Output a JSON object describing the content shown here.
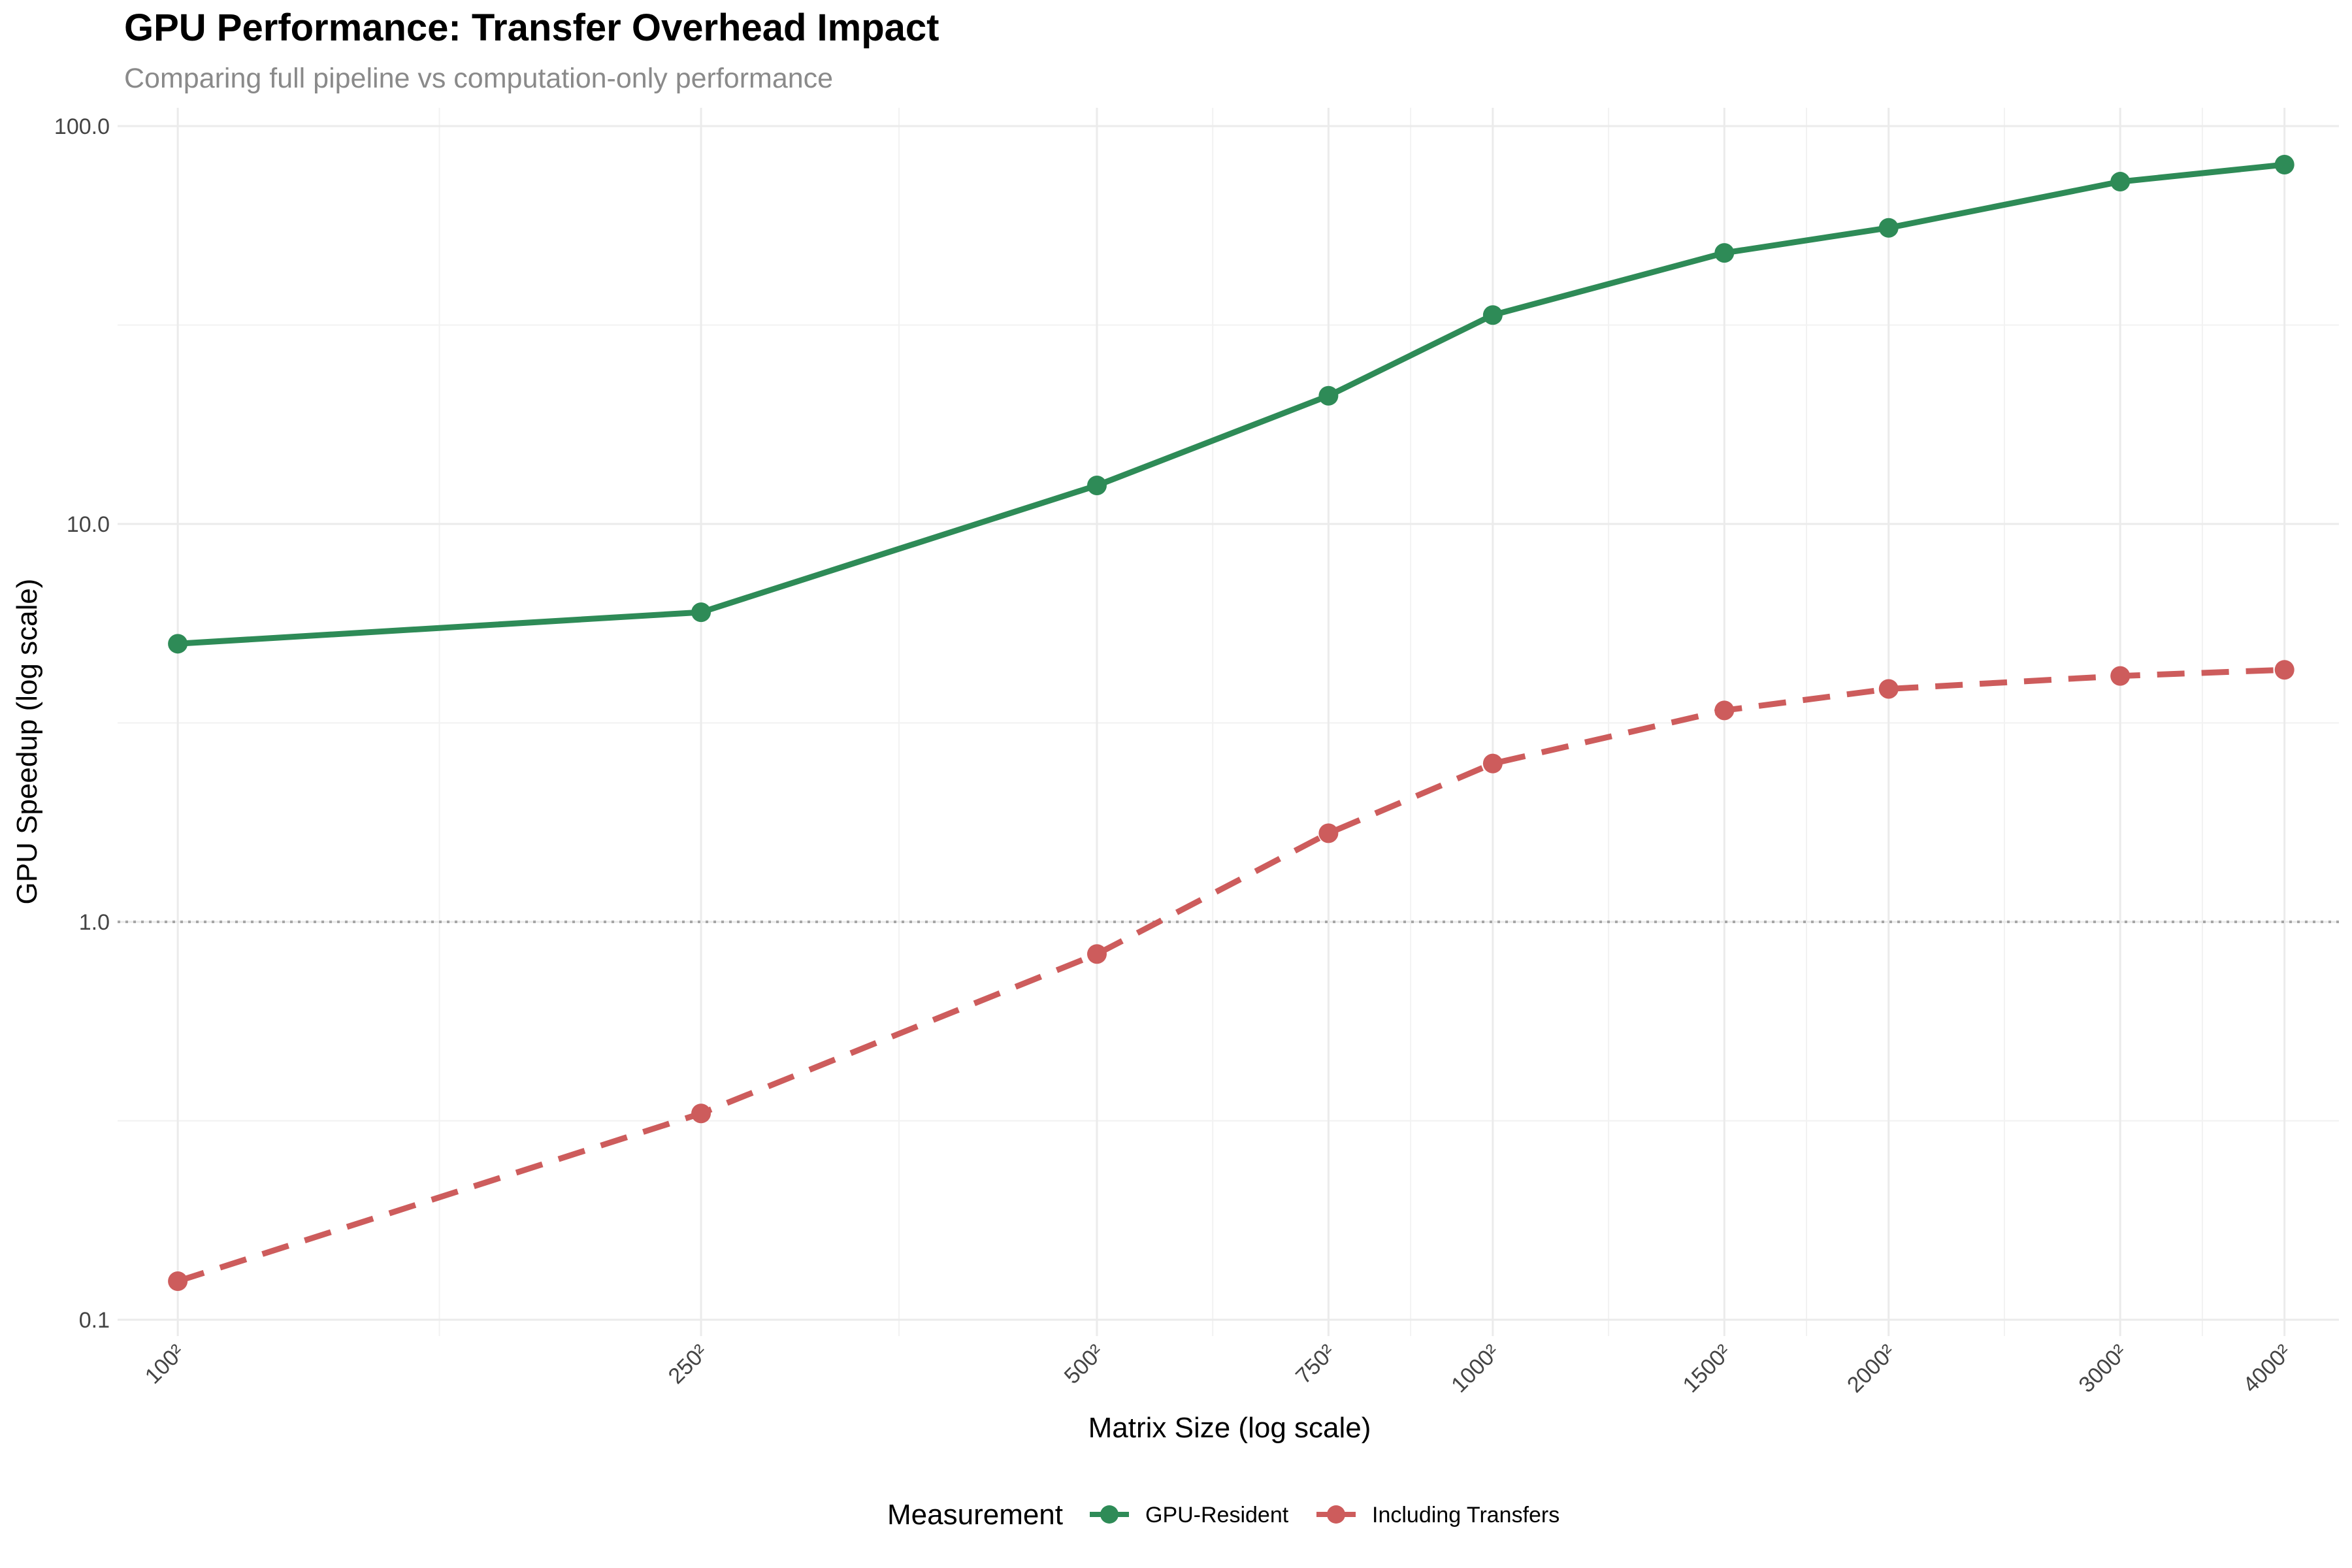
{
  "chart_data": {
    "type": "line",
    "title": "GPU Performance: Transfer Overhead Impact",
    "subtitle": "Comparing full pipeline vs computation-only performance",
    "xlabel": "Matrix Size (log scale)",
    "ylabel": "GPU Speedup (log scale)",
    "x_scale": "log",
    "y_scale": "log",
    "x": [
      100,
      250,
      500,
      750,
      1000,
      1500,
      2000,
      3000,
      4000
    ],
    "x_tick_labels": [
      "100²",
      "250²",
      "500²",
      "750²",
      "1000²",
      "1500²",
      "2000²",
      "3000²",
      "4000²"
    ],
    "xlim": [
      90,
      4400
    ],
    "y_ticks": [
      0.1,
      1,
      10,
      100
    ],
    "y_tick_labels": [
      "0.1",
      "1.0",
      "10.0",
      "100.0"
    ],
    "ylim": [
      0.1,
      100
    ],
    "reference_line": {
      "y": 1,
      "style": "dotted",
      "color": "#a6a6a6"
    },
    "grid": true,
    "legend": {
      "title": "Measurement",
      "position": "bottom"
    },
    "series": [
      {
        "name": "GPU-Resident",
        "color": "#2e8b57",
        "line_style": "solid",
        "values": [
          5.0,
          6.0,
          12.5,
          21.0,
          33.5,
          48.0,
          55.5,
          72.5,
          80.0
        ]
      },
      {
        "name": "Including Transfers",
        "color": "#cd5c5c",
        "line_style": "dashed",
        "values": [
          0.125,
          0.33,
          0.83,
          1.67,
          2.5,
          3.4,
          3.85,
          4.15,
          4.3
        ]
      }
    ]
  }
}
